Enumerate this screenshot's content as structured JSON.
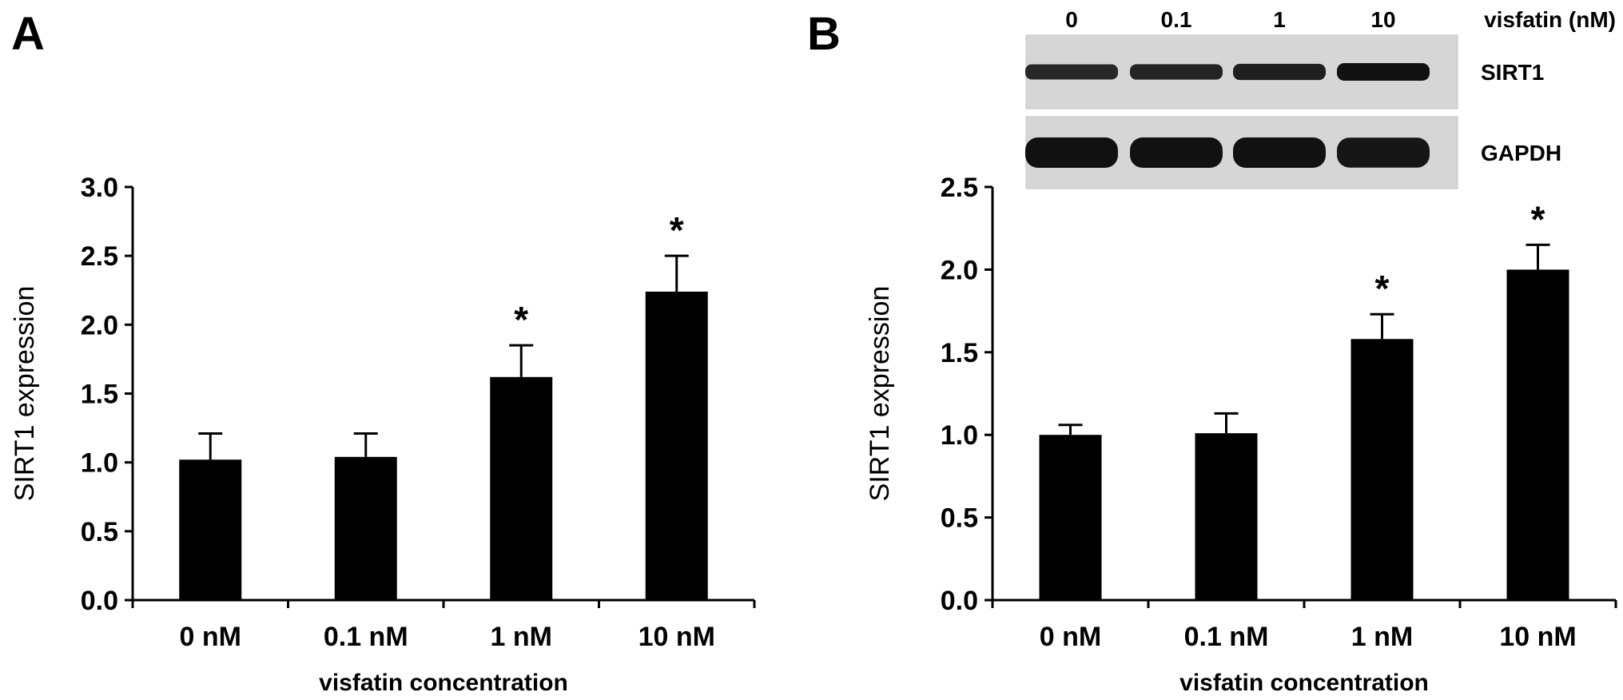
{
  "chart_data": [
    {
      "panel": "A",
      "type": "bar",
      "categories": [
        "0 nM",
        "0.1 nM",
        "1 nM",
        "10 nM"
      ],
      "values": [
        1.02,
        1.04,
        1.62,
        2.24
      ],
      "errors": [
        0.19,
        0.17,
        0.23,
        0.26
      ],
      "significant": [
        "",
        "",
        "*",
        "*"
      ],
      "xlabel": "visfatin concentration",
      "ylabel": "SIRT1 expression",
      "ylim": [
        0,
        3.0
      ],
      "yticks": [
        "0.0",
        "0.5",
        "1.0",
        "1.5",
        "2.0",
        "2.5",
        "3.0"
      ],
      "grid": false,
      "bar_color": "#000000"
    },
    {
      "panel": "B",
      "type": "bar",
      "categories": [
        "0 nM",
        "0.1 nM",
        "1 nM",
        "10 nM"
      ],
      "values": [
        1.0,
        1.01,
        1.58,
        2.0
      ],
      "errors": [
        0.06,
        0.12,
        0.15,
        0.15
      ],
      "significant": [
        "",
        "",
        "*",
        "*"
      ],
      "xlabel": "visfatin  concentration",
      "ylabel": "SIRT1 expression",
      "ylim": [
        0,
        2.5
      ],
      "yticks": [
        "0.0",
        "0.5",
        "1.0",
        "1.5",
        "2.0",
        "2.5"
      ],
      "grid": false,
      "bar_color": "#000000",
      "blot": {
        "lane_labels": [
          "0",
          "0.1",
          "1",
          "10"
        ],
        "header": "visfatin (nM)",
        "rows": [
          {
            "name": "SIRT1",
            "band_intensity": [
              0.75,
              0.78,
              0.85,
              1.0
            ]
          },
          {
            "name": "GAPDH",
            "band_intensity": [
              1.0,
              1.0,
              1.0,
              0.95
            ]
          }
        ]
      }
    }
  ]
}
